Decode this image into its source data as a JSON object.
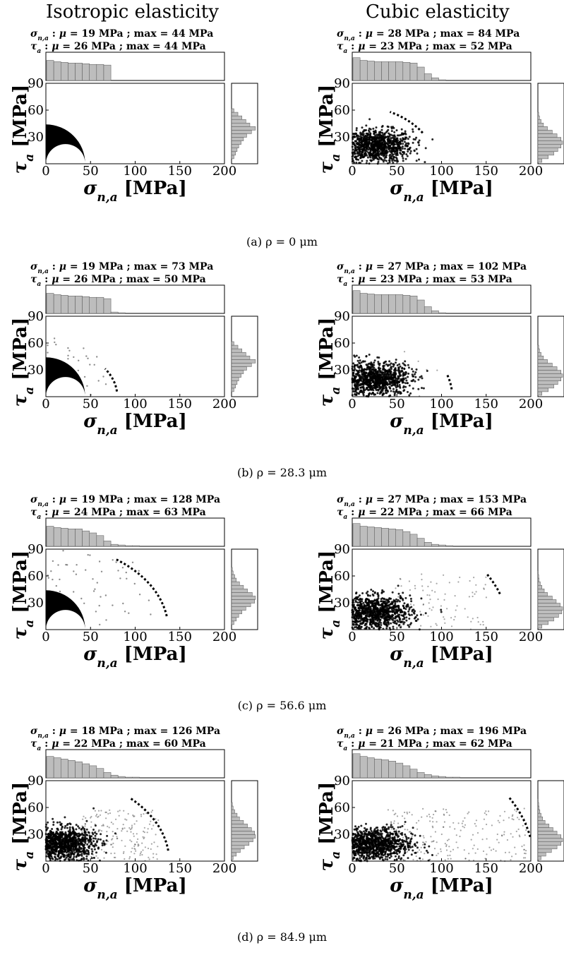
{
  "figure": {
    "column_titles": [
      "Isotropic elasticity",
      "Cubic elasticity"
    ],
    "captions": [
      "(a) ρ = 0 μm",
      "(b) ρ = 28.3 μm",
      "(c) ρ = 56.6 μm",
      "(d) ρ = 84.9 μm"
    ],
    "stat_symbols": {
      "sigma": "σ",
      "sigma_sub": "n,a",
      "tau": "τ",
      "tau_sub": "a",
      "mu": "μ"
    },
    "axis_labels": {
      "x": {
        "symbol": "σ",
        "sub": "n,a",
        "unit": " [MPa]"
      },
      "y": {
        "symbol": "τ",
        "sub": "a",
        "unit": " [MPa]"
      }
    },
    "colors": {
      "points": "#000000",
      "histogram_fill": "#bdbdbd",
      "histogram_stroke": "#555555",
      "frame": "#000000"
    }
  },
  "chart_data": [
    {
      "type": "scatter",
      "row": "a",
      "column": "Isotropic elasticity",
      "stats": {
        "sigma_mean": "19 MPa",
        "sigma_max": "44 MPa",
        "tau_mean": "26 MPa",
        "tau_max": "44 MPa"
      },
      "xlim": [
        0,
        200
      ],
      "ylim": [
        0,
        90
      ],
      "x_ticks": [
        0,
        50,
        100,
        150,
        200
      ],
      "y_ticks": [
        30,
        60,
        90
      ],
      "cloud": {
        "shape": "half-annulus",
        "center": [
          22,
          0
        ],
        "inner_radius": 22,
        "outer_radius": 22,
        "scatter": 0
      },
      "dashed_arc": null,
      "hist_x": [
        30,
        28,
        27,
        26,
        26,
        25,
        24,
        24,
        23,
        0,
        0,
        0,
        0,
        0,
        0,
        0,
        0,
        0,
        0,
        0
      ],
      "hist_y": [
        0,
        6,
        10,
        14,
        18,
        24,
        30,
        38,
        50,
        60,
        46,
        36,
        26,
        16,
        6,
        0,
        0,
        0
      ]
    },
    {
      "type": "scatter",
      "row": "a",
      "column": "Cubic elasticity",
      "stats": {
        "sigma_mean": "28 MPa",
        "sigma_max": "84 MPa",
        "tau_mean": "23 MPa",
        "tau_max": "52 MPa"
      },
      "xlim": [
        0,
        200
      ],
      "ylim": [
        0,
        90
      ],
      "x_ticks": [
        0,
        50,
        100,
        150,
        200
      ],
      "y_ticks": [
        30,
        60,
        90
      ],
      "cloud": {
        "shape": "ellipse",
        "sx": 28,
        "sy": 13,
        "cx": 28,
        "cy": 20,
        "outliers": 0
      },
      "dashed_arc": {
        "center": [
          0,
          0
        ],
        "radius": 93,
        "from_deg": 32,
        "to_deg": 63
      },
      "hist_x": [
        34,
        30,
        29,
        28,
        28,
        28,
        28,
        27,
        26,
        20,
        10,
        4,
        1,
        0,
        0,
        0,
        0,
        0,
        0,
        0
      ],
      "hist_y": [
        10,
        26,
        40,
        50,
        58,
        62,
        58,
        48,
        36,
        24,
        14,
        8,
        4,
        2,
        0,
        0,
        0,
        0
      ]
    },
    {
      "type": "scatter",
      "row": "b",
      "column": "Isotropic elasticity",
      "stats": {
        "sigma_mean": "19 MPa",
        "sigma_max": "73 MPa",
        "tau_mean": "26 MPa",
        "tau_max": "50 MPa"
      },
      "xlim": [
        0,
        200
      ],
      "ylim": [
        0,
        90
      ],
      "x_ticks": [
        0,
        50,
        100,
        150,
        200
      ],
      "y_ticks": [
        30,
        60,
        90
      ],
      "cloud": {
        "shape": "half-annulus",
        "center": [
          22,
          0
        ],
        "inner_radius": 22,
        "outer_radius": 22,
        "scatter": 25
      },
      "dashed_arc": {
        "center": [
          0,
          0
        ],
        "radius": 80,
        "from_deg": 6,
        "to_deg": 34
      },
      "hist_x": [
        30,
        28,
        27,
        26,
        26,
        25,
        24,
        24,
        22,
        2,
        1,
        0,
        0,
        0,
        0,
        0,
        0,
        0,
        0,
        0
      ],
      "hist_y": [
        0,
        6,
        10,
        14,
        18,
        24,
        30,
        38,
        50,
        60,
        46,
        36,
        26,
        16,
        6,
        0,
        0,
        0
      ]
    },
    {
      "type": "scatter",
      "row": "b",
      "column": "Cubic elasticity",
      "stats": {
        "sigma_mean": "27 MPa",
        "sigma_max": "102 MPa",
        "tau_mean": "23 MPa",
        "tau_max": "53 MPa"
      },
      "xlim": [
        0,
        200
      ],
      "ylim": [
        0,
        90
      ],
      "x_ticks": [
        0,
        50,
        100,
        150,
        200
      ],
      "y_ticks": [
        30,
        60,
        90
      ],
      "cloud": {
        "shape": "ellipse",
        "sx": 28,
        "sy": 13,
        "cx": 27,
        "cy": 20,
        "outliers": 6
      },
      "dashed_arc": {
        "center": [
          0,
          0
        ],
        "radius": 112,
        "from_deg": 6,
        "to_deg": 18
      },
      "hist_x": [
        34,
        30,
        29,
        28,
        28,
        28,
        28,
        27,
        26,
        20,
        10,
        4,
        1,
        0,
        0,
        0,
        0,
        0,
        0,
        0
      ],
      "hist_y": [
        10,
        26,
        40,
        50,
        58,
        62,
        58,
        48,
        36,
        24,
        14,
        8,
        4,
        2,
        0,
        0,
        0,
        0
      ]
    },
    {
      "type": "scatter",
      "row": "c",
      "column": "Isotropic elasticity",
      "stats": {
        "sigma_mean": "19 MPa",
        "sigma_max": "128 MPa",
        "tau_mean": "24 MPa",
        "tau_max": "63 MPa"
      },
      "xlim": [
        0,
        200
      ],
      "ylim": [
        0,
        90
      ],
      "x_ticks": [
        0,
        50,
        100,
        150,
        200
      ],
      "y_ticks": [
        30,
        60,
        90
      ],
      "cloud": {
        "shape": "half-annulus",
        "center": [
          22,
          0
        ],
        "inner_radius": 22,
        "outer_radius": 24,
        "scatter": 60
      },
      "dashed_arc": {
        "center": [
          0,
          0
        ],
        "radius": 137,
        "from_deg": 9,
        "to_deg": 55
      },
      "hist_x": [
        30,
        28,
        27,
        26,
        26,
        23,
        20,
        16,
        8,
        3,
        2,
        1,
        1,
        0,
        0,
        0,
        0,
        0,
        0,
        0
      ],
      "hist_y": [
        0,
        6,
        12,
        18,
        26,
        36,
        48,
        58,
        60,
        52,
        40,
        30,
        20,
        12,
        8,
        4,
        2,
        0
      ]
    },
    {
      "type": "scatter",
      "row": "c",
      "column": "Cubic elasticity",
      "stats": {
        "sigma_mean": "27 MPa",
        "sigma_max": "153 MPa",
        "tau_mean": "22 MPa",
        "tau_max": "66 MPa"
      },
      "xlim": [
        0,
        200
      ],
      "ylim": [
        0,
        90
      ],
      "x_ticks": [
        0,
        50,
        100,
        150,
        200
      ],
      "y_ticks": [
        30,
        60,
        90
      ],
      "cloud": {
        "shape": "ellipse",
        "sx": 29,
        "sy": 13,
        "cx": 27,
        "cy": 19,
        "outliers": 90
      },
      "dashed_arc": {
        "center": [
          0,
          0
        ],
        "radius": 175,
        "from_deg": 19,
        "to_deg": 31
      },
      "hist_x": [
        34,
        30,
        29,
        28,
        27,
        26,
        25,
        22,
        18,
        12,
        6,
        3,
        2,
        1,
        0,
        0,
        0,
        0,
        0,
        0
      ],
      "hist_y": [
        10,
        26,
        40,
        52,
        60,
        62,
        56,
        46,
        36,
        24,
        16,
        10,
        6,
        3,
        2,
        1,
        0,
        0
      ]
    },
    {
      "type": "scatter",
      "row": "d",
      "column": "Isotropic elasticity",
      "stats": {
        "sigma_mean": "18 MPa",
        "sigma_max": "126 MPa",
        "tau_mean": "22 MPa",
        "tau_max": "60 MPa"
      },
      "xlim": [
        0,
        200
      ],
      "ylim": [
        0,
        90
      ],
      "x_ticks": [
        0,
        50,
        100,
        150,
        200
      ],
      "y_ticks": [
        30,
        60,
        90
      ],
      "cloud": {
        "shape": "ellipse",
        "sx": 25,
        "sy": 13,
        "cx": 20,
        "cy": 20,
        "outliers": 180
      },
      "dashed_arc": {
        "center": [
          0,
          0
        ],
        "radius": 138,
        "from_deg": 7,
        "to_deg": 47
      },
      "hist_x": [
        32,
        30,
        28,
        26,
        24,
        21,
        18,
        14,
        8,
        4,
        2,
        1,
        1,
        0,
        0,
        0,
        0,
        0,
        0,
        0
      ],
      "hist_y": [
        4,
        12,
        22,
        32,
        44,
        54,
        60,
        58,
        50,
        40,
        30,
        20,
        14,
        8,
        4,
        2,
        0,
        0
      ]
    },
    {
      "type": "scatter",
      "row": "d",
      "column": "Cubic elasticity",
      "stats": {
        "sigma_mean": "26 MPa",
        "sigma_max": "196 MPa",
        "tau_mean": "21 MPa",
        "tau_max": "62 MPa"
      },
      "xlim": [
        0,
        200
      ],
      "ylim": [
        0,
        90
      ],
      "x_ticks": [
        0,
        50,
        100,
        150,
        200
      ],
      "y_ticks": [
        30,
        60,
        90
      ],
      "cloud": {
        "shape": "ellipse",
        "sx": 30,
        "sy": 13,
        "cx": 26,
        "cy": 19,
        "outliers": 220
      },
      "dashed_arc": {
        "center": [
          0,
          0
        ],
        "radius": 203,
        "from_deg": 11,
        "to_deg": 30
      },
      "hist_x": [
        36,
        32,
        30,
        28,
        27,
        25,
        22,
        18,
        13,
        8,
        5,
        3,
        2,
        1,
        1,
        0,
        0,
        0,
        0,
        0
      ],
      "hist_y": [
        8,
        20,
        34,
        48,
        58,
        62,
        58,
        48,
        38,
        28,
        18,
        12,
        8,
        5,
        3,
        2,
        1,
        0
      ]
    }
  ]
}
